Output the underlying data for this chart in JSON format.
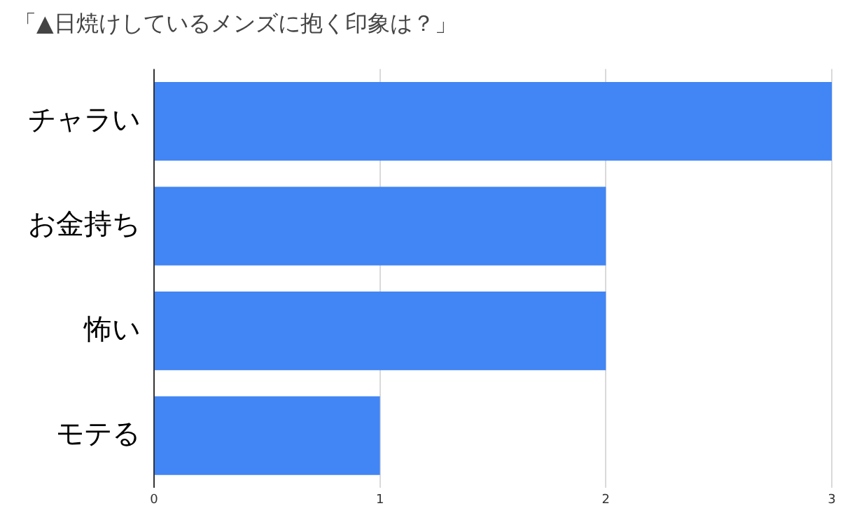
{
  "chart_data": {
    "type": "bar",
    "orientation": "horizontal",
    "title": "「▲日焼けしているメンズに抱く印象は？」",
    "categories": [
      "チャラい",
      "お金持ち",
      "怖い",
      "モテる"
    ],
    "values": [
      3,
      2,
      2,
      1
    ],
    "color": "#4285f4",
    "xlim": [
      0,
      3
    ],
    "xticks": [
      0,
      1,
      2,
      3
    ],
    "grid": "x",
    "legend": false
  }
}
